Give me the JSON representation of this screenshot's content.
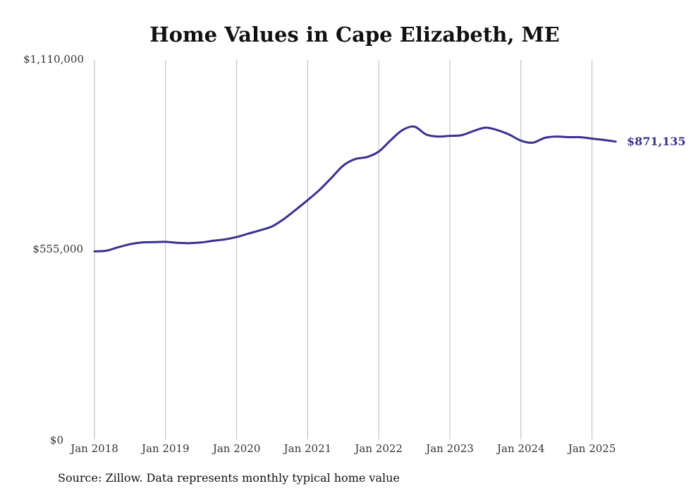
{
  "source_note": "Source: Zillow. Data represents monthly typical home value",
  "colors": {
    "series": "#3a3190",
    "grid": "#b8b8b8"
  },
  "chart_data": {
    "type": "line",
    "title": "Home Values in Cape Elizabeth, ME",
    "xlabel": "",
    "ylabel": "",
    "x_ticks": [
      "Jan 2018",
      "Jan 2019",
      "Jan 2020",
      "Jan 2021",
      "Jan 2022",
      "Jan 2023",
      "Jan 2024",
      "Jan 2025"
    ],
    "y_ticks": [
      "$0",
      "$555,000",
      "$1,110,000"
    ],
    "ylim": [
      0,
      1110000
    ],
    "xlim": [
      "2018-01",
      "2025-12"
    ],
    "grid": "vertical",
    "end_label": "$871,135",
    "series": [
      {
        "x": [
          "2018-01",
          "2018-03",
          "2018-05",
          "2018-07",
          "2018-09",
          "2018-11",
          "2019-01",
          "2019-03",
          "2019-05",
          "2019-07",
          "2019-09",
          "2019-11",
          "2020-01",
          "2020-03",
          "2020-05",
          "2020-07",
          "2020-09",
          "2020-11",
          "2021-01",
          "2021-03",
          "2021-05",
          "2021-07",
          "2021-09",
          "2021-11",
          "2022-01",
          "2022-03",
          "2022-05",
          "2022-07",
          "2022-09",
          "2022-11",
          "2023-01",
          "2023-03",
          "2023-05",
          "2023-07",
          "2023-09",
          "2023-11",
          "2024-01",
          "2024-03",
          "2024-05",
          "2024-07",
          "2024-09",
          "2024-11",
          "2025-01",
          "2025-03",
          "2025-05"
        ],
        "values": [
          550000,
          552000,
          562000,
          571000,
          576000,
          577000,
          578000,
          575000,
          574000,
          576000,
          581000,
          585000,
          592000,
          602000,
          612000,
          623000,
          645000,
          672000,
          700000,
          730000,
          765000,
          801000,
          820000,
          826000,
          842000,
          875000,
          905000,
          915000,
          892000,
          886000,
          888000,
          890000,
          902000,
          912000,
          905000,
          892000,
          874000,
          868000,
          882000,
          886000,
          884000,
          884000,
          880000,
          876000,
          871135
        ]
      }
    ]
  }
}
